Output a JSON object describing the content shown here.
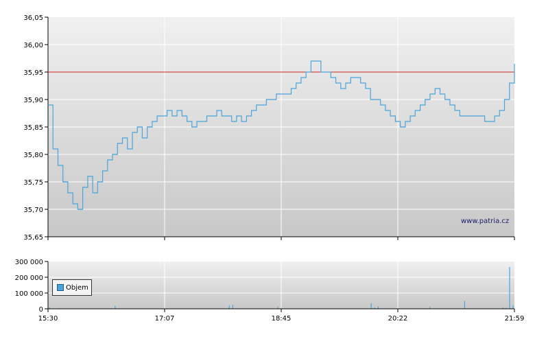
{
  "site_label": "www.patria.cz",
  "legend_label": "Objem",
  "colors": {
    "price_line": "#4aa3d9",
    "reference_line": "#cc2222",
    "volume_bar": "#4aa3d9",
    "grid": "#ffffff",
    "plot_bg_top": "#f0f0f0",
    "plot_bg_bottom": "#c8c8c8"
  },
  "chart_data": [
    {
      "type": "line",
      "title": "",
      "xlabel": "",
      "ylabel": "",
      "ylim": [
        35.65,
        36.05
      ],
      "y_ticks": [
        "36,05",
        "36,00",
        "35,95",
        "35,90",
        "35,85",
        "35,80",
        "35,75",
        "35,70",
        "35,65"
      ],
      "x_ticks": [
        "15:30",
        "17:07",
        "18:45",
        "20:22",
        "21:59"
      ],
      "reference_line": 35.95,
      "series": [
        {
          "values": [
            35.89,
            35.81,
            35.78,
            35.75,
            35.73,
            35.71,
            35.7,
            35.74,
            35.76,
            35.73,
            35.75,
            35.77,
            35.79,
            35.8,
            35.82,
            35.83,
            35.81,
            35.84,
            35.85,
            35.83,
            35.85,
            35.86,
            35.87,
            35.87,
            35.88,
            35.87,
            35.88,
            35.87,
            35.86,
            35.85,
            35.86,
            35.86,
            35.87,
            35.87,
            35.88,
            35.87,
            35.87,
            35.86,
            35.87,
            35.86,
            35.87,
            35.88,
            35.89,
            35.89,
            35.9,
            35.9,
            35.91,
            35.91,
            35.91,
            35.92,
            35.93,
            35.94,
            35.95,
            35.97,
            35.97,
            35.95,
            35.95,
            35.94,
            35.93,
            35.92,
            35.93,
            35.94,
            35.94,
            35.93,
            35.92,
            35.9,
            35.9,
            35.89,
            35.88,
            35.87,
            35.86,
            35.85,
            35.86,
            35.87,
            35.88,
            35.89,
            35.9,
            35.91,
            35.92,
            35.91,
            35.9,
            35.89,
            35.88,
            35.87,
            35.87,
            35.87,
            35.87,
            35.87,
            35.86,
            35.86,
            35.87,
            35.88,
            35.9,
            35.93,
            35.965
          ]
        }
      ]
    },
    {
      "type": "bar",
      "title": "",
      "ylim": [
        0,
        300000
      ],
      "y_ticks": [
        "300 000",
        "200 000",
        "100 000",
        "0"
      ],
      "x_ticks": [
        "15:30",
        "17:07",
        "18:45",
        "20:22",
        "21:59"
      ],
      "series": [
        {
          "name": "Objem",
          "values": [
            8000,
            3000,
            2000,
            4000,
            2500,
            1500,
            3000,
            2000,
            1500,
            2500,
            1000,
            2000,
            3000,
            1500,
            2000,
            1000,
            2500,
            1500,
            2000,
            18000,
            3000,
            2000,
            1000,
            1500,
            2500,
            2000,
            1500,
            2000,
            1000,
            1500,
            2500,
            1500,
            1000,
            2000,
            3000,
            1500,
            2500,
            1500,
            1000,
            2000,
            3500,
            2000,
            1500,
            2500,
            1000,
            2000,
            3000,
            2000,
            1500,
            2500,
            1000,
            2000,
            20000,
            25000,
            3000,
            2000,
            1500,
            2500,
            2000,
            1000,
            3000,
            2000,
            1500,
            2500,
            1000,
            2000,
            12000,
            2500,
            1500,
            2000,
            1000,
            2500,
            1500,
            2000,
            1000,
            3000,
            2000,
            1500,
            2500,
            1000,
            2000,
            3000,
            2000,
            1500,
            2500,
            1000,
            2000,
            3000,
            2000,
            1500,
            2500,
            1000,
            2000,
            35000,
            8000,
            15000,
            3000,
            2000,
            1500,
            2500,
            2000,
            1000,
            2500,
            1500,
            2000,
            1000,
            2500,
            1500,
            2000,
            4000,
            12000,
            2500,
            2000,
            1500,
            1000,
            2000,
            1500,
            2500,
            1000,
            2000,
            50000,
            2000,
            1500,
            2500,
            1000,
            2000,
            1500,
            2500,
            1000,
            2000,
            3000,
            8000,
            6000,
            265000,
            20000
          ]
        }
      ]
    }
  ]
}
